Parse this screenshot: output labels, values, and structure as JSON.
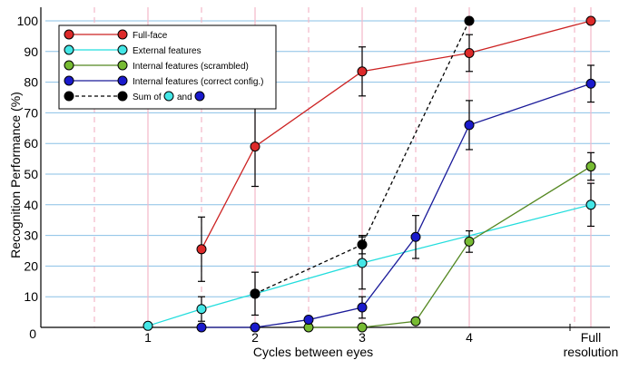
{
  "chart_data": {
    "type": "line",
    "xlabel": "Cycles between eyes",
    "ylabel": "Recognition Performance (%)",
    "ylim": [
      0,
      100
    ],
    "grid": true,
    "legend_position": "top-left",
    "x_ticks": [
      {
        "x": 1,
        "label": "1"
      },
      {
        "x": 2,
        "label": "2"
      },
      {
        "x": 3,
        "label": "3"
      },
      {
        "x": 4,
        "label": "4"
      },
      {
        "x": 5.15,
        "label": "Full\nresolution"
      }
    ],
    "y_ticks": [
      0,
      10,
      20,
      30,
      40,
      50,
      60,
      70,
      80,
      90,
      100
    ],
    "y_zero_label": "0",
    "series": [
      {
        "name": "Full-face",
        "color": "#cc2222",
        "marker_color": "#dd2a2a",
        "dashed": false,
        "points": [
          {
            "x": 1.5,
            "y": 25.5,
            "err": 10.5
          },
          {
            "x": 2,
            "y": 59,
            "err": 13
          },
          {
            "x": 3,
            "y": 83.5,
            "err": 8
          },
          {
            "x": 4,
            "y": 89.5,
            "err": 6
          },
          {
            "x": 5.15,
            "y": 100
          }
        ]
      },
      {
        "name": "External features",
        "color": "#22dddd",
        "marker_color": "#44e6e6",
        "dashed": false,
        "points": [
          {
            "x": 1,
            "y": 0.5
          },
          {
            "x": 1.5,
            "y": 6,
            "err": 4
          },
          {
            "x": 2,
            "y": 11,
            "err": 7
          },
          {
            "x": 3,
            "y": 21,
            "err": 8.5
          },
          {
            "x": 5.15,
            "y": 40,
            "err": 7
          }
        ]
      },
      {
        "name": "Internal features (scrambled)",
        "color": "#558822",
        "marker_color": "#77bb33",
        "dashed": false,
        "points": [
          {
            "x": 2.5,
            "y": 0
          },
          {
            "x": 3,
            "y": 0
          },
          {
            "x": 3.5,
            "y": 2
          },
          {
            "x": 4,
            "y": 28,
            "err": 3.5
          },
          {
            "x": 5.15,
            "y": 52.5,
            "err": 4.5
          }
        ]
      },
      {
        "name": "Internal features (correct config.)",
        "color": "#1a1a99",
        "marker_color": "#1a1acc",
        "dashed": false,
        "points": [
          {
            "x": 1.5,
            "y": 0
          },
          {
            "x": 2,
            "y": 0
          },
          {
            "x": 2.5,
            "y": 2.5
          },
          {
            "x": 3,
            "y": 6.5,
            "err": 3.5
          },
          {
            "x": 3.5,
            "y": 29.5,
            "err": 7
          },
          {
            "x": 4,
            "y": 66,
            "err": 8
          },
          {
            "x": 5.15,
            "y": 79.5,
            "err": 6
          }
        ]
      },
      {
        "name": "Sum of",
        "legend_suffix": "and",
        "color": "#000000",
        "marker_color": "#000000",
        "dashed": true,
        "points": [
          {
            "x": 2,
            "y": 11
          },
          {
            "x": 3,
            "y": 27,
            "err": 3
          },
          {
            "x": 4,
            "y": 100
          }
        ]
      }
    ],
    "background_gridlines": {
      "horizontal_color": "#8ac0e6",
      "vertical_solid_color": "#f2b8c8",
      "vertical_dashed_color": "#f2b8c8",
      "vertical_solid_at": [
        1,
        2,
        3,
        4,
        5.15
      ],
      "vertical_dashed_at": [
        0.5,
        1.5,
        2.5,
        3.5,
        4.85
      ]
    }
  }
}
